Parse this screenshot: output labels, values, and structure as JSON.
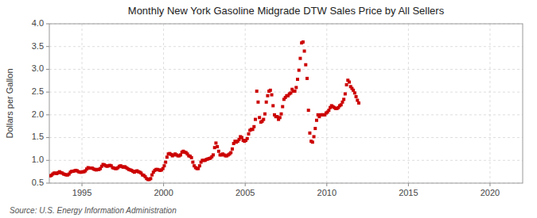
{
  "chart_data": {
    "type": "scatter",
    "title": "Monthly New York Gasoline Midgrade DTW Sales Price by All Sellers",
    "y_label": "Dollars per Gallon",
    "annotations": [
      "Source: U.S. Energy Information Administration"
    ],
    "color": "#CC0000",
    "marker": "square",
    "grid": true,
    "xlim": [
      1993.0,
      2022.0
    ],
    "xticks": [
      1995,
      2000,
      2005,
      2010,
      2015,
      2020
    ],
    "ylim": [
      0.5,
      4.0
    ],
    "yticks": [
      0.5,
      {
        "value": 1.0,
        "label": "1.0"
      },
      1.5,
      {
        "value": 2.0,
        "label": "2.0"
      },
      2.5,
      {
        "value": 3.0,
        "label": "3.0"
      },
      3.5,
      {
        "value": 4.0,
        "label": "4.0"
      }
    ],
    "x": [
      1993.0416666666667,
      1993.125,
      1993.2083333333333,
      1993.2916666666667,
      1993.375,
      1993.4583333333333,
      1993.5416666666667,
      1993.625,
      1993.7083333333333,
      1993.7916666666667,
      1993.875,
      1993.9583333333333,
      1994.0416666666667,
      1994.125,
      1994.2083333333333,
      1994.2916666666667,
      1994.375,
      1994.4583333333333,
      1994.5416666666667,
      1994.625,
      1994.7083333333333,
      1994.7916666666667,
      1994.875,
      1994.9583333333333,
      1995.0416666666667,
      1995.125,
      1995.2083333333333,
      1995.2916666666667,
      1995.375,
      1995.4583333333333,
      1995.5416666666667,
      1995.625,
      1995.7083333333333,
      1995.7916666666667,
      1995.875,
      1995.9583333333333,
      1996.0416666666667,
      1996.125,
      1996.2083333333333,
      1996.2916666666667,
      1996.375,
      1996.4583333333333,
      1996.5416666666667,
      1996.625,
      1996.7083333333333,
      1996.7916666666667,
      1996.875,
      1996.9583333333333,
      1997.0416666666667,
      1997.125,
      1997.2083333333333,
      1997.2916666666667,
      1997.375,
      1997.4583333333333,
      1997.5416666666667,
      1997.625,
      1997.7083333333333,
      1997.7916666666667,
      1997.875,
      1997.9583333333333,
      1998.0416666666667,
      1998.125,
      1998.2083333333333,
      1998.2916666666667,
      1998.375,
      1998.4583333333333,
      1998.5416666666667,
      1998.625,
      1998.7083333333333,
      1998.7916666666667,
      1998.875,
      1998.9583333333333,
      1999.0416666666667,
      1999.125,
      1999.2083333333333,
      1999.2916666666667,
      1999.375,
      1999.4583333333333,
      1999.5416666666667,
      1999.625,
      1999.7083333333333,
      1999.7916666666667,
      1999.875,
      1999.9583333333333,
      2000.0416666666667,
      2000.125,
      2000.2083333333333,
      2000.2916666666667,
      2000.375,
      2000.4583333333333,
      2000.5416666666667,
      2000.625,
      2000.7083333333333,
      2000.7916666666667,
      2000.875,
      2000.9583333333333,
      2001.0416666666667,
      2001.125,
      2001.2083333333333,
      2001.2916666666667,
      2001.375,
      2001.4583333333333,
      2001.5416666666667,
      2001.625,
      2001.7083333333333,
      2001.7916666666667,
      2001.875,
      2001.9583333333333,
      2002.0416666666667,
      2002.125,
      2002.2083333333333,
      2002.2916666666667,
      2002.375,
      2002.4583333333333,
      2002.5416666666667,
      2002.625,
      2002.7083333333333,
      2002.7916666666667,
      2002.875,
      2002.9583333333333,
      2003.0416666666667,
      2003.125,
      2003.2083333333333,
      2003.2916666666667,
      2003.375,
      2003.4583333333333,
      2003.5416666666667,
      2003.625,
      2003.7083333333333,
      2003.7916666666667,
      2003.875,
      2003.9583333333333,
      2004.0416666666667,
      2004.125,
      2004.2083333333333,
      2004.2916666666667,
      2004.375,
      2004.4583333333333,
      2004.5416666666667,
      2004.625,
      2004.7083333333333,
      2004.7916666666667,
      2004.875,
      2004.9583333333333,
      2005.0416666666667,
      2005.125,
      2005.2083333333333,
      2005.2916666666667,
      2005.375,
      2005.4583333333333,
      2005.5416666666667,
      2005.625,
      2005.7083333333333,
      2005.7916666666667,
      2005.875,
      2005.9583333333333,
      2006.0416666666667,
      2006.125,
      2006.2083333333333,
      2006.2916666666667,
      2006.375,
      2006.4583333333333,
      2006.5416666666667,
      2006.625,
      2006.7083333333333,
      2006.7916666666667,
      2006.875,
      2006.9583333333333,
      2007.0416666666667,
      2007.125,
      2007.2083333333333,
      2007.2916666666667,
      2007.375,
      2007.4583333333333,
      2007.5416666666667,
      2007.625,
      2007.7083333333333,
      2007.7916666666667,
      2007.875,
      2007.9583333333333,
      2008.0416666666667,
      2008.125,
      2008.2083333333333,
      2008.2916666666667,
      2008.375,
      2008.4583333333333,
      2008.5416666666667,
      2008.625,
      2008.7083333333333,
      2008.7916666666667,
      2008.875,
      2008.9583333333333,
      2009.0416666666667,
      2009.125,
      2009.2083333333333,
      2009.2916666666667,
      2009.375,
      2009.4583333333333,
      2009.5416666666667,
      2009.625,
      2009.7083333333333,
      2009.7916666666667,
      2009.875,
      2009.9583333333333,
      2010.0416666666667,
      2010.125,
      2010.2083333333333,
      2010.2916666666667,
      2010.375,
      2010.4583333333333,
      2010.5416666666667,
      2010.625,
      2010.7083333333333,
      2010.7916666666667,
      2010.875,
      2010.9583333333333,
      2011.0416666666667,
      2011.125,
      2011.2083333333333,
      2011.2916666666667,
      2011.375,
      2011.4583333333333,
      2011.5416666666667,
      2011.625,
      2011.7083333333333,
      2011.7916666666667,
      2011.875,
      2011.9583333333333
    ],
    "values": [
      0.66,
      0.67,
      0.7,
      0.72,
      0.72,
      0.71,
      0.73,
      0.75,
      0.73,
      0.72,
      0.7,
      0.69,
      0.68,
      0.68,
      0.7,
      0.74,
      0.76,
      0.76,
      0.77,
      0.78,
      0.77,
      0.75,
      0.74,
      0.74,
      0.75,
      0.75,
      0.77,
      0.81,
      0.84,
      0.83,
      0.83,
      0.83,
      0.81,
      0.8,
      0.79,
      0.8,
      0.8,
      0.82,
      0.87,
      0.91,
      0.9,
      0.88,
      0.87,
      0.88,
      0.89,
      0.88,
      0.84,
      0.83,
      0.82,
      0.82,
      0.84,
      0.87,
      0.88,
      0.86,
      0.85,
      0.86,
      0.84,
      0.82,
      0.8,
      0.79,
      0.78,
      0.76,
      0.74,
      0.76,
      0.77,
      0.75,
      0.74,
      0.72,
      0.68,
      0.67,
      0.64,
      0.6,
      0.58,
      0.58,
      0.6,
      0.68,
      0.74,
      0.78,
      0.8,
      0.8,
      0.79,
      0.78,
      0.79,
      0.82,
      0.88,
      0.96,
      1.07,
      1.14,
      1.15,
      1.13,
      1.1,
      1.12,
      1.14,
      1.12,
      1.1,
      1.1,
      1.12,
      1.18,
      1.2,
      1.18,
      1.17,
      1.14,
      1.1,
      1.09,
      1.06,
      0.96,
      0.88,
      0.84,
      0.82,
      0.82,
      0.88,
      0.96,
      1.0,
      1.0,
      1.0,
      1.02,
      1.03,
      1.04,
      1.05,
      1.08,
      1.12,
      1.28,
      1.38,
      1.3,
      1.2,
      1.12,
      1.12,
      1.14,
      1.12,
      1.1,
      1.1,
      1.12,
      1.14,
      1.17,
      1.25,
      1.37,
      1.42,
      1.4,
      1.42,
      1.46,
      1.52,
      1.5,
      1.44,
      1.42,
      1.44,
      1.48,
      1.58,
      1.66,
      1.68,
      1.68,
      1.74,
      1.9,
      2.52,
      2.28,
      1.94,
      1.84,
      1.86,
      1.9,
      2.02,
      2.28,
      2.42,
      2.52,
      2.54,
      2.44,
      2.2,
      2.0,
      1.96,
      1.96,
      1.9,
      1.94,
      2.02,
      2.18,
      2.34,
      2.38,
      2.42,
      2.42,
      2.46,
      2.48,
      2.56,
      2.52,
      2.52,
      2.6,
      2.78,
      2.98,
      3.24,
      3.58,
      3.6,
      3.4,
      3.1,
      2.8,
      2.1,
      1.6,
      1.42,
      1.4,
      1.52,
      1.7,
      1.88,
      2.0,
      1.96,
      2.0,
      2.0,
      2.0,
      2.0,
      2.04,
      2.06,
      2.1,
      2.16,
      2.2,
      2.18,
      2.16,
      2.14,
      2.14,
      2.16,
      2.2,
      2.22,
      2.28,
      2.34,
      2.46,
      2.66,
      2.76,
      2.72,
      2.62,
      2.58,
      2.54,
      2.48,
      2.4,
      2.32,
      2.26
    ]
  }
}
